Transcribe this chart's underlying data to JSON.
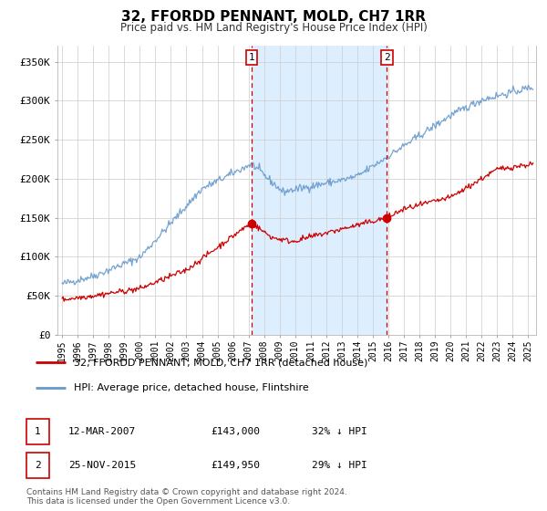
{
  "title": "32, FFORDD PENNANT, MOLD, CH7 1RR",
  "subtitle": "Price paid vs. HM Land Registry's House Price Index (HPI)",
  "ylim": [
    0,
    370000
  ],
  "xlim_start": 1994.7,
  "xlim_end": 2025.5,
  "grid_color": "#cccccc",
  "shaded_region": [
    2007.19,
    2015.9
  ],
  "shaded_color": "#ddeeff",
  "marker1": {
    "date_num": 2007.19,
    "value": 143000,
    "label": "1",
    "date_str": "12-MAR-2007",
    "price": "£143,000",
    "pct": "32% ↓ HPI"
  },
  "marker2": {
    "date_num": 2015.9,
    "value": 149950,
    "label": "2",
    "date_str": "25-NOV-2015",
    "price": "£149,950",
    "pct": "29% ↓ HPI"
  },
  "vline1_x": 2007.19,
  "vline2_x": 2015.9,
  "vline_color": "#cc0000",
  "hpi_color": "#6699cc",
  "price_color": "#cc0000",
  "legend_label_price": "32, FFORDD PENNANT, MOLD, CH7 1RR (detached house)",
  "legend_label_hpi": "HPI: Average price, detached house, Flintshire",
  "footer1": "Contains HM Land Registry data © Crown copyright and database right 2024.",
  "footer2": "This data is licensed under the Open Government Licence v3.0.",
  "yticks": [
    0,
    50000,
    100000,
    150000,
    200000,
    250000,
    300000,
    350000
  ],
  "ytick_labels": [
    "£0",
    "£50K",
    "£100K",
    "£150K",
    "£200K",
    "£250K",
    "£300K",
    "£350K"
  ],
  "xticks": [
    1995,
    1996,
    1997,
    1998,
    1999,
    2000,
    2001,
    2002,
    2003,
    2004,
    2005,
    2006,
    2007,
    2008,
    2009,
    2010,
    2011,
    2012,
    2013,
    2014,
    2015,
    2016,
    2017,
    2018,
    2019,
    2020,
    2021,
    2022,
    2023,
    2024,
    2025
  ]
}
